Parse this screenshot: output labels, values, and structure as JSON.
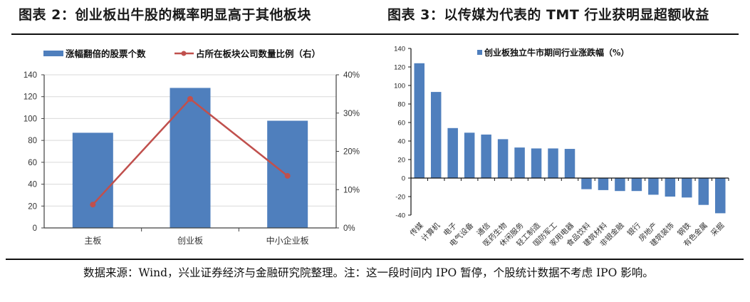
{
  "left_figure": {
    "title": "图表 2：创业板出牛股的概率明显高于其他板块"
  },
  "right_figure": {
    "title": "图表 3：以传媒为代表的 TMT 行业获明显超额收益"
  },
  "source_note": "数据来源：Wind，兴业证券经济与金融研究院整理。注：这一段时间内 IPO 暂停，个股统计数据不考虑 IPO 影响。",
  "colors": {
    "bar": "#4f7fbd",
    "line": "#c0504d",
    "grid": "#d9d9d9",
    "axis": "#404040"
  },
  "chart_data": [
    {
      "type": "bar",
      "title": "图表 2：创业板出牛股的概率明显高于其他板块",
      "categories": [
        "主板",
        "创业板",
        "中小企业板"
      ],
      "series": [
        {
          "name": "涨幅翻倍的股票个数",
          "type": "bar",
          "axis": "left",
          "values": [
            87,
            128,
            98
          ]
        },
        {
          "name": "占所在板块公司数量比例（右）",
          "type": "line",
          "axis": "right",
          "values": [
            0.061,
            0.337,
            0.136
          ]
        }
      ],
      "ylim": [
        0,
        140
      ],
      "yticks": [
        0,
        20,
        40,
        60,
        80,
        100,
        120,
        140
      ],
      "y2lim": [
        0,
        0.4
      ],
      "y2ticks": [
        "0%",
        "10%",
        "20%",
        "30%",
        "40%"
      ],
      "legend_position": "top",
      "grid": true,
      "xlabel": "",
      "ylabel": ""
    },
    {
      "type": "bar",
      "title": "图表 3：以传媒为代表的 TMT 行业获明显超额收益",
      "categories": [
        "传媒",
        "计算机",
        "电子",
        "电气设备",
        "通信",
        "医药生物",
        "休闲服务",
        "轻工制造",
        "国防军工",
        "家用电器",
        "食品饮料",
        "建筑材料",
        "非银金融",
        "银行",
        "房地产",
        "建筑装饰",
        "钢铁",
        "有色金属",
        "采掘"
      ],
      "series": [
        {
          "name": "创业板独立牛市期间行业涨跌幅（%）",
          "values": [
            124,
            93,
            54,
            49,
            47,
            42,
            33,
            32,
            32,
            31.5,
            -12,
            -13,
            -14,
            -14,
            -18,
            -20,
            -21,
            -29,
            -38
          ]
        }
      ],
      "ylim": [
        -40,
        140
      ],
      "yticks": [
        -40,
        -20,
        0,
        20,
        40,
        60,
        80,
        100,
        120,
        140
      ],
      "legend_position": "top",
      "grid": false,
      "xlabel": "",
      "ylabel": ""
    }
  ]
}
